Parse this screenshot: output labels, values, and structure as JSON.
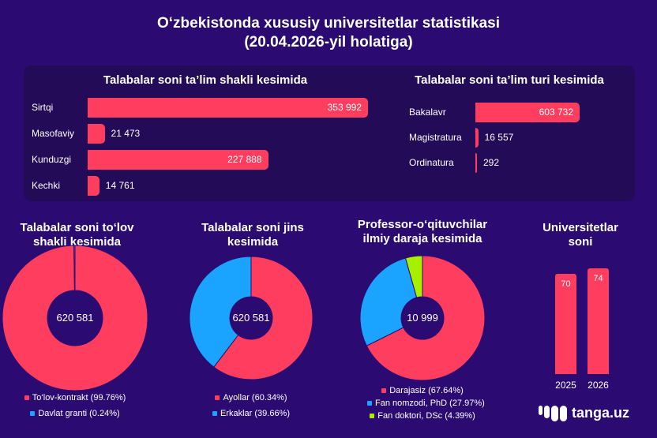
{
  "title": {
    "line1": "O‘zbekistonda xususiy universitetlar statistikasi",
    "line2": "(20.04.2026-yil holatiga)"
  },
  "colors": {
    "background": "#2b0a72",
    "panel": "#230b58",
    "pink": "#ff3d5e",
    "blue": "#1aa3ff",
    "green": "#a6f000"
  },
  "brand": {
    "name": "tanga.uz"
  },
  "chart_data": [
    {
      "type": "bar",
      "orientation": "horizontal",
      "title": "Talabalar soni ta’lim shakli kesimida",
      "categories": [
        "Sirtqi",
        "Masofaviy",
        "Kunduzgi",
        "Kechki"
      ],
      "values": [
        353992,
        21473,
        227888,
        14761
      ],
      "labels": [
        "353 992",
        "21 473",
        "227 888",
        "14 761"
      ]
    },
    {
      "type": "bar",
      "orientation": "horizontal",
      "title": "Talabalar soni ta’lim turi kesimida",
      "categories": [
        "Bakalavr",
        "Magistratura",
        "Ordinatura"
      ],
      "values": [
        603732,
        16557,
        292
      ],
      "labels": [
        "603 732",
        "16 557",
        "292"
      ]
    },
    {
      "type": "pie",
      "donut": true,
      "title": "Talabalar soni to‘lov shakli kesimida",
      "center_label": "620 581",
      "slices": [
        {
          "label": "To‘lov-kontrakt (99.76%)",
          "value": 99.76,
          "color": "#ff3d5e"
        },
        {
          "label": "Davlat granti (0.24%)",
          "value": 0.24,
          "color": "#1aa3ff"
        }
      ]
    },
    {
      "type": "pie",
      "donut": true,
      "title": "Talabalar soni jins kesimida",
      "center_label": "620 581",
      "slices": [
        {
          "label": "Ayollar (60.34%)",
          "value": 60.34,
          "color": "#ff3d5e"
        },
        {
          "label": "Erkaklar (39.66%)",
          "value": 39.66,
          "color": "#1aa3ff"
        }
      ]
    },
    {
      "type": "pie",
      "donut": true,
      "title": "Professor-o‘qituvchilar ilmiy daraja kesimida",
      "center_label": "10 999",
      "slices": [
        {
          "label": "Darajasiz (67.64%)",
          "value": 67.64,
          "color": "#ff3d5e"
        },
        {
          "label": "Fan nomzodi, PhD (27.97%)",
          "value": 27.97,
          "color": "#1aa3ff"
        },
        {
          "label": "Fan doktori, DSc (4.39%)",
          "value": 4.39,
          "color": "#a6f000"
        }
      ]
    },
    {
      "type": "bar",
      "title": "Universitetlar soni",
      "categories": [
        "2025",
        "2026"
      ],
      "values": [
        70,
        74
      ],
      "labels": [
        "70",
        "74"
      ]
    }
  ]
}
